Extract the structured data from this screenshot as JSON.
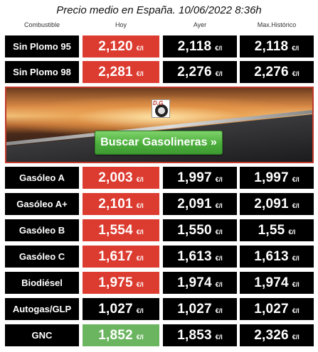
{
  "title": "Precio medio en España. 10/06/2022 8:36h",
  "columns": [
    "Combustible",
    "Hoy",
    "Ayer",
    "Max.Histórico"
  ],
  "unit": "€/l",
  "banner": {
    "button_label": "Buscar Gasolineras »",
    "logo_text": "D.G"
  },
  "colors": {
    "up": "#dc3b30",
    "down": "#6bb560",
    "neutral": "#000000"
  },
  "fuels": [
    {
      "name": "Sin Plomo 95",
      "hoy": "2,120",
      "ayer": "2,118",
      "max": "2,118",
      "trend": "up"
    },
    {
      "name": "Sin Plomo 98",
      "hoy": "2,281",
      "ayer": "2,276",
      "max": "2,276",
      "trend": "up"
    },
    {
      "name": "Gasóleo A",
      "hoy": "2,003",
      "ayer": "1,997",
      "max": "1,997",
      "trend": "up"
    },
    {
      "name": "Gasóleo A+",
      "hoy": "2,101",
      "ayer": "2,091",
      "max": "2,091",
      "trend": "up"
    },
    {
      "name": "Gasóleo B",
      "hoy": "1,554",
      "ayer": "1,550",
      "max": "1,55",
      "trend": "up"
    },
    {
      "name": "Gasóleo C",
      "hoy": "1,617",
      "ayer": "1,613",
      "max": "1,613",
      "trend": "up"
    },
    {
      "name": "Biodiésel",
      "hoy": "1,975",
      "ayer": "1,974",
      "max": "1,974",
      "trend": "up"
    },
    {
      "name": "Autogas/GLP",
      "hoy": "1,027",
      "ayer": "1,027",
      "max": "1,027",
      "trend": "neutral"
    },
    {
      "name": "GNC",
      "hoy": "1,852",
      "ayer": "1,853",
      "max": "2,326",
      "trend": "down"
    }
  ]
}
